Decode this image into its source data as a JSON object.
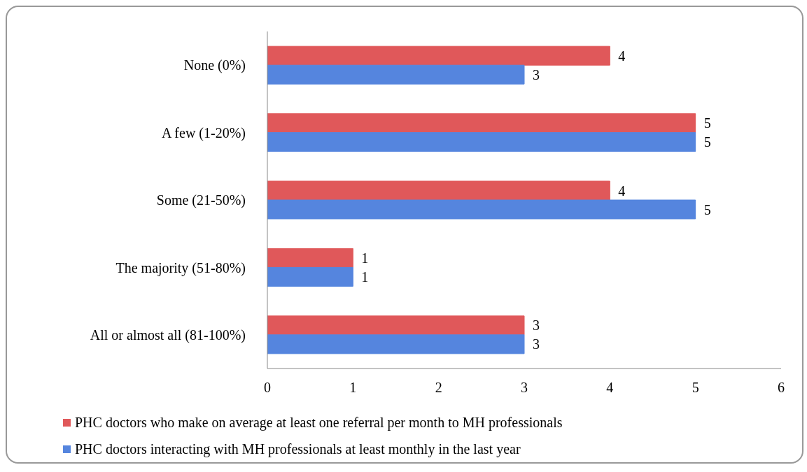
{
  "chart_data": {
    "type": "bar",
    "orientation": "horizontal",
    "categories": [
      "None (0%)",
      "A few (1-20%)",
      "Some (21-50%)",
      "The majority (51-80%)",
      "All or almost all (81-100%)"
    ],
    "series": [
      {
        "name": "PHC doctors who make on average at least one referral per month to MH professionals",
        "color": "#e0585a",
        "values": [
          4,
          5,
          4,
          1,
          3
        ]
      },
      {
        "name": "PHC doctors interacting with MH professionals at least monthly in the last year",
        "color": "#5585de",
        "values": [
          3,
          5,
          5,
          1,
          3
        ]
      }
    ],
    "xlim": [
      0,
      6
    ],
    "xticks": [
      0,
      1,
      2,
      3,
      4,
      5,
      6
    ],
    "data_labels": true,
    "grid": false,
    "legend": "bottom"
  }
}
